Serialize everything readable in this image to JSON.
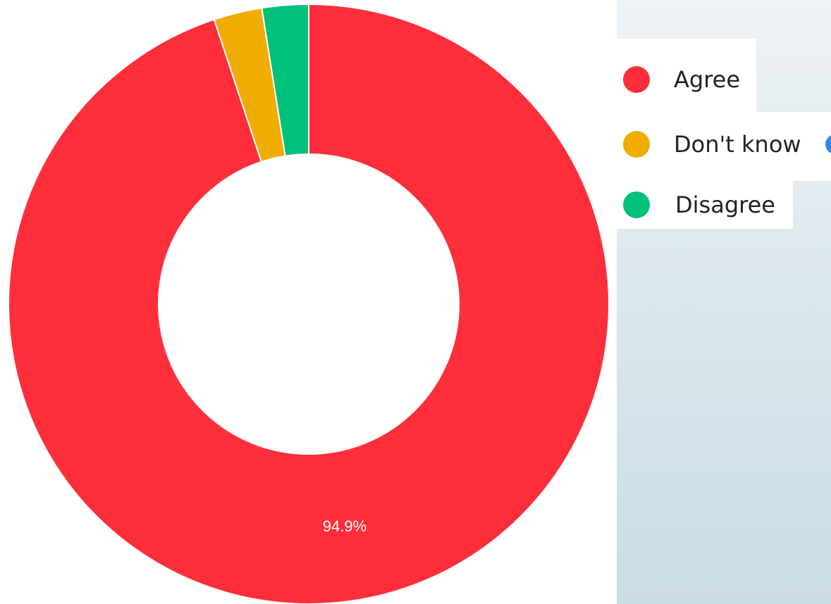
{
  "chart_data": {
    "type": "pie",
    "variant": "donut",
    "slices": [
      {
        "label": "Agree",
        "value": 94.9,
        "color": "#fe2e3b",
        "data_label": "94.9%"
      },
      {
        "label": "Don't know",
        "value": 2.6,
        "color": "#f0ad00",
        "data_label": ""
      },
      {
        "label": "Disagree",
        "value": 2.5,
        "color": "#00c07a",
        "data_label": ""
      }
    ],
    "start_angle_deg": 0,
    "direction": "clockwise",
    "legend_position": "right",
    "title": ""
  },
  "legend": {
    "items": [
      {
        "label": "Agree",
        "color": "#fe2e3b"
      },
      {
        "label": "Don't know",
        "color": "#f0ad00"
      },
      {
        "label": "Disagree",
        "color": "#00c07a"
      }
    ]
  },
  "colors": {
    "label_text": "#ffffff",
    "slice_border": "#ffffff",
    "overflow_dot": "#2e8ae6"
  }
}
